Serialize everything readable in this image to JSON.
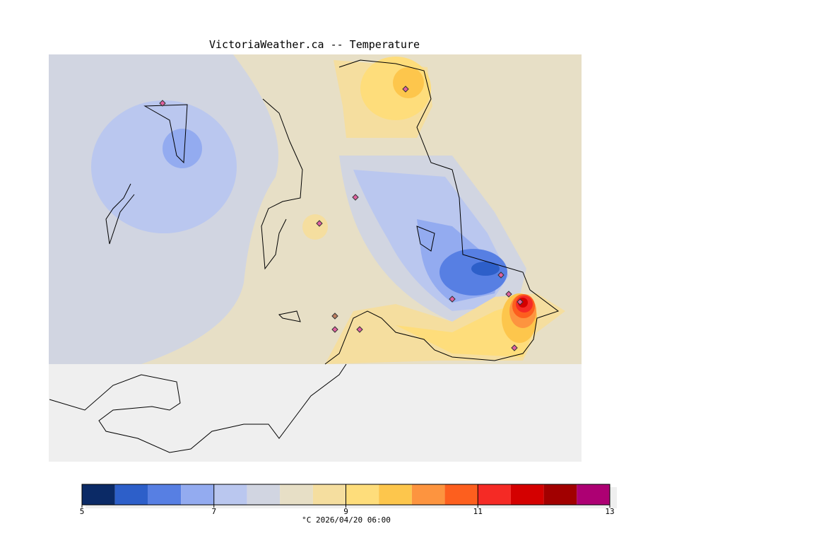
{
  "title": "VictoriaWeather.ca -- Temperature",
  "colorbar": {
    "min": 5,
    "max": 13,
    "step": 0.5,
    "colors": [
      "#0b2a66",
      "#2d5fc9",
      "#577fe3",
      "#93abf0",
      "#bac7ef",
      "#d1d5e1",
      "#e7dfc6",
      "#f5de9f",
      "#fedd7b",
      "#fdc64c",
      "#fd943f",
      "#fd5f1e",
      "#f52a25",
      "#d40000",
      "#a10000",
      "#ad0073"
    ],
    "tick_labels": [
      "5",
      "7",
      "9",
      "11",
      "13"
    ],
    "caption": "°C  2026/04/20 06:00"
  },
  "chart_data": {
    "type": "heatmap",
    "title": "VictoriaWeather.ca -- Temperature",
    "units": "°C",
    "valid_time": "2026/04/20 06:00",
    "range": [
      5,
      13
    ],
    "features": [
      {
        "region": "west/northwest water",
        "value_range": [
          7.5,
          8
        ]
      },
      {
        "region": "west island cold center",
        "value_range": [
          6.5,
          7.5
        ]
      },
      {
        "region": "central strait",
        "value_range": [
          8,
          8.5
        ]
      },
      {
        "region": "north peninsula warm spot",
        "value_range": [
          9,
          9.5
        ]
      },
      {
        "region": "eastern cold pool",
        "value_range": [
          5.5,
          7
        ]
      },
      {
        "region": "southeast hot spot",
        "value_range": [
          11,
          12.5
        ]
      },
      {
        "region": "southern coast",
        "value_range": [
          8.5,
          9.5
        ]
      }
    ]
  }
}
